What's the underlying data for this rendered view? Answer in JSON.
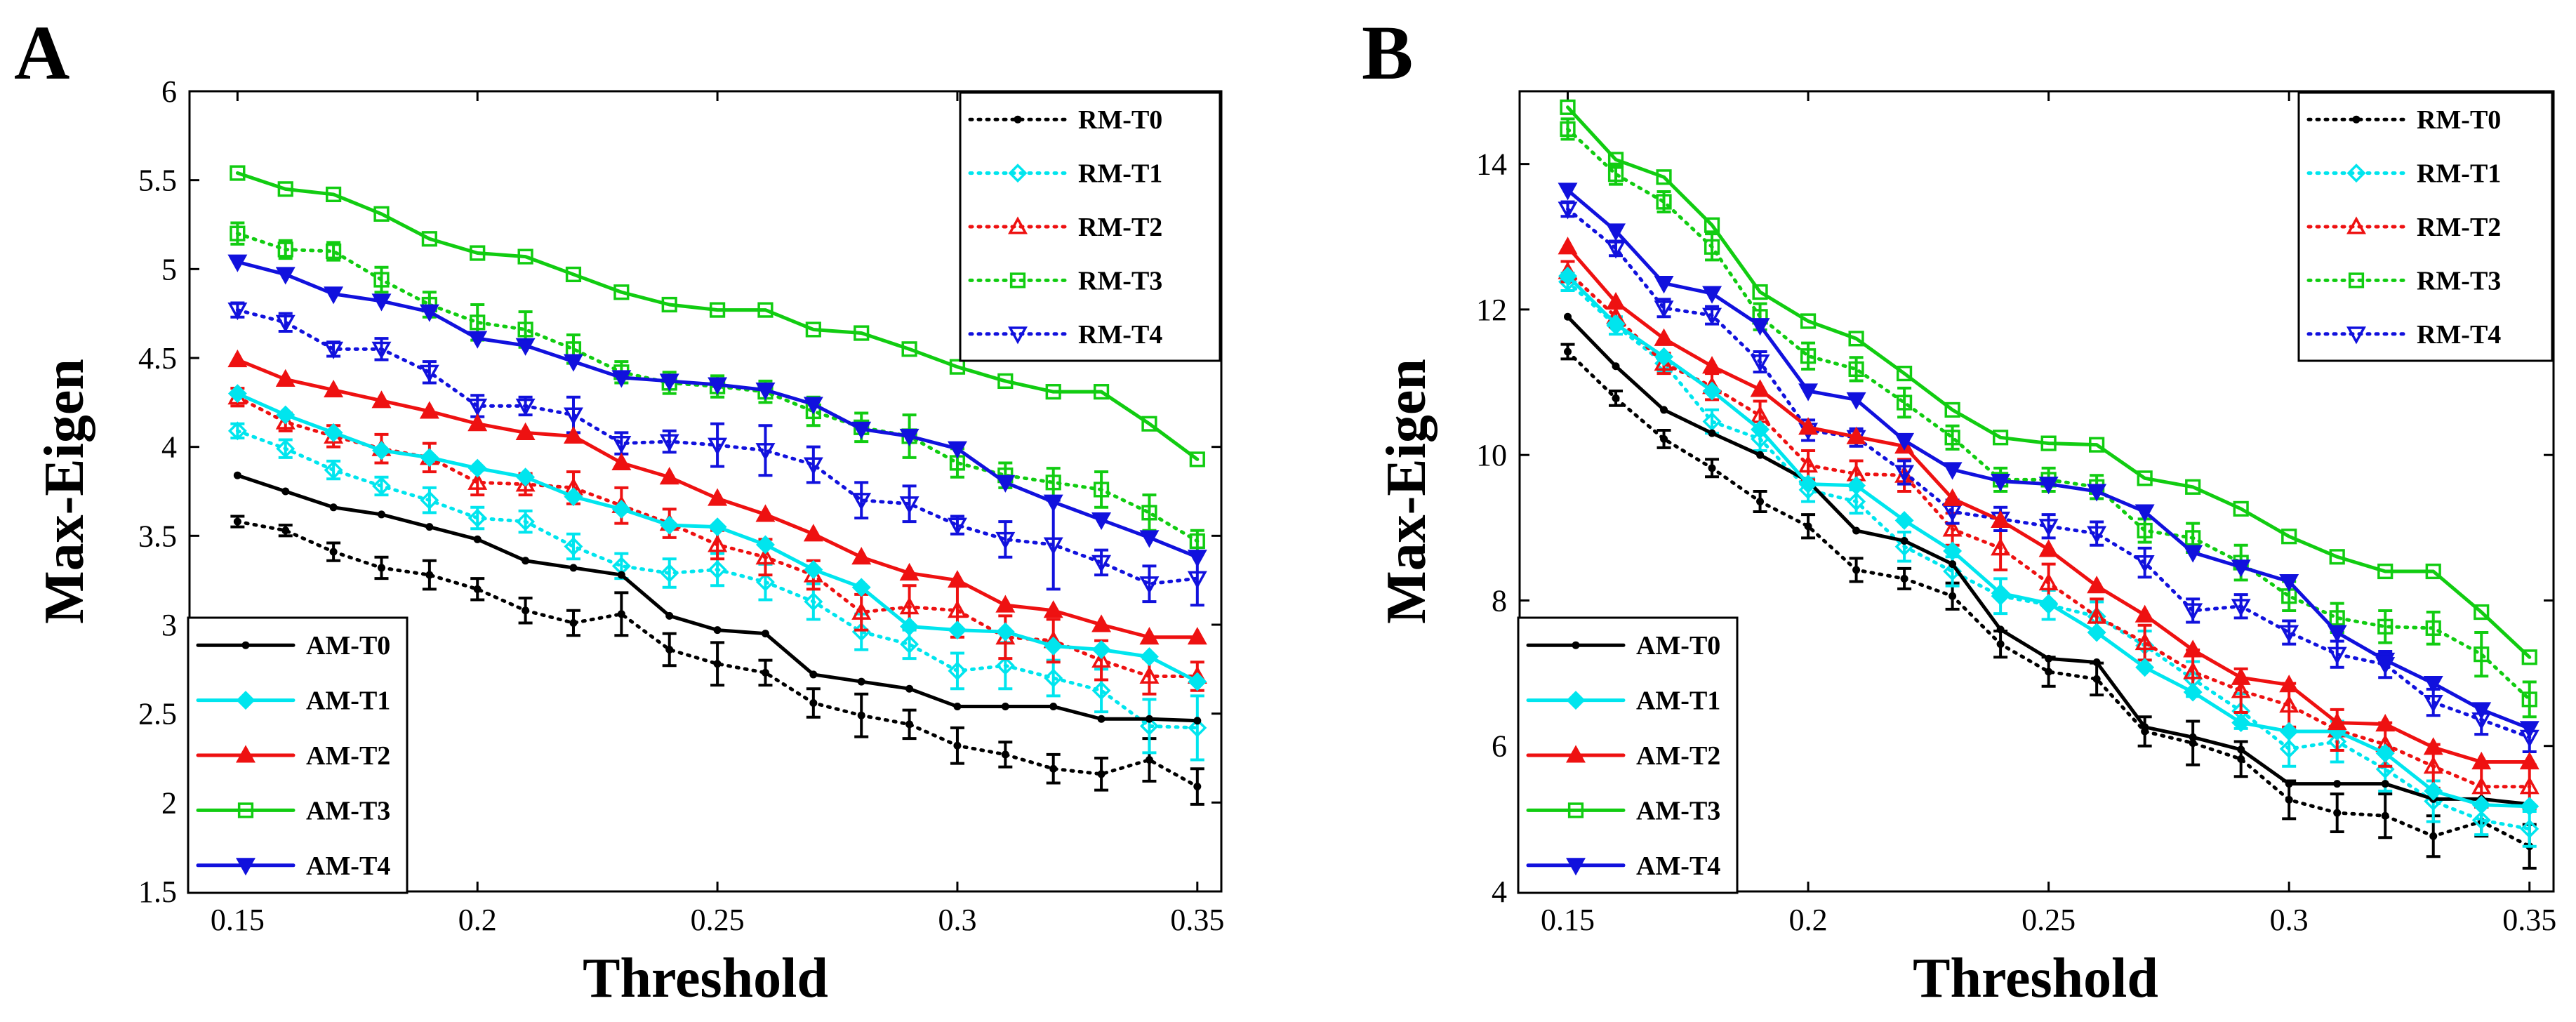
{
  "colors": {
    "T0": "#000000",
    "T1": "#00e5ee",
    "T2": "#ee1111",
    "T3": "#11cc11",
    "T4": "#1111dd"
  },
  "chart_data": [
    {
      "type": "line",
      "panel_label": "A",
      "xlabel": "Threshold",
      "ylabel": "Max-Eigen",
      "xlim": [
        0.14,
        0.355
      ],
      "ylim": [
        1.5,
        6
      ],
      "xticks": [
        0.15,
        0.2,
        0.25,
        0.3,
        0.35
      ],
      "xtick_labels": [
        "0.15",
        "0.2",
        "0.25",
        "0.3",
        "0.35"
      ],
      "yticks": [
        1.5,
        2,
        2.5,
        3,
        3.5,
        4,
        4.5,
        5,
        5.5,
        6
      ],
      "ytick_labels": [
        "1.5",
        "2",
        "2.5",
        "3",
        "3.5",
        "4",
        "4.5",
        "5",
        "5.5",
        "6"
      ],
      "legend_solid_position": "bottom-left",
      "legend_dotted_position": "top-right",
      "x": [
        0.15,
        0.16,
        0.17,
        0.18,
        0.19,
        0.2,
        0.21,
        0.22,
        0.23,
        0.24,
        0.25,
        0.26,
        0.27,
        0.28,
        0.29,
        0.3,
        0.31,
        0.32,
        0.33,
        0.34,
        0.35
      ],
      "series": [
        {
          "name": "AM-T0",
          "key": "T0",
          "style": "solid",
          "marker": "dot",
          "values": [
            3.84,
            3.75,
            3.66,
            3.62,
            3.55,
            3.48,
            3.36,
            3.32,
            3.28,
            3.05,
            2.97,
            2.95,
            2.72,
            2.68,
            2.64,
            2.54,
            2.54,
            2.54,
            2.47,
            2.47,
            2.46
          ]
        },
        {
          "name": "AM-T1",
          "key": "T1",
          "style": "solid",
          "marker": "diamond",
          "values": [
            4.3,
            4.18,
            4.08,
            3.98,
            3.94,
            3.88,
            3.83,
            3.72,
            3.65,
            3.56,
            3.55,
            3.45,
            3.31,
            3.21,
            2.99,
            2.97,
            2.96,
            2.88,
            2.86,
            2.82,
            2.68
          ]
        },
        {
          "name": "AM-T2",
          "key": "T2",
          "style": "solid",
          "marker": "triangle-up",
          "values": [
            4.49,
            4.38,
            4.32,
            4.26,
            4.2,
            4.13,
            4.08,
            4.06,
            3.91,
            3.83,
            3.71,
            3.62,
            3.51,
            3.38,
            3.29,
            3.25,
            3.11,
            3.08,
            3.0,
            2.93,
            2.93
          ]
        },
        {
          "name": "AM-T3",
          "key": "T3",
          "style": "solid",
          "marker": "square",
          "values": [
            5.54,
            5.45,
            5.42,
            5.31,
            5.17,
            5.09,
            5.07,
            4.97,
            4.87,
            4.8,
            4.77,
            4.77,
            4.66,
            4.64,
            4.55,
            4.45,
            4.37,
            4.31,
            4.31,
            4.13,
            3.93
          ]
        },
        {
          "name": "AM-T4",
          "key": "T4",
          "style": "solid",
          "marker": "triangle-down",
          "values": [
            5.04,
            4.97,
            4.86,
            4.82,
            4.76,
            4.61,
            4.57,
            4.48,
            4.39,
            4.37,
            4.35,
            4.32,
            4.24,
            4.1,
            4.06,
            3.99,
            3.8,
            3.69,
            3.59,
            3.49,
            3.38
          ]
        },
        {
          "name": "RM-T0",
          "key": "T0",
          "style": "dotted",
          "marker": "dot",
          "values": [
            3.58,
            3.53,
            3.41,
            3.32,
            3.28,
            3.2,
            3.08,
            3.01,
            3.06,
            2.86,
            2.78,
            2.73,
            2.56,
            2.49,
            2.44,
            2.32,
            2.27,
            2.19,
            2.16,
            2.24,
            2.09
          ],
          "errors": [
            0.03,
            0.03,
            0.05,
            0.06,
            0.08,
            0.06,
            0.07,
            0.07,
            0.12,
            0.09,
            0.12,
            0.07,
            0.08,
            0.12,
            0.08,
            0.1,
            0.07,
            0.08,
            0.09,
            0.12,
            0.1
          ]
        },
        {
          "name": "RM-T1",
          "key": "T1",
          "style": "dotted",
          "marker": "diamond",
          "values": [
            4.09,
            3.99,
            3.87,
            3.78,
            3.7,
            3.6,
            3.58,
            3.44,
            3.33,
            3.29,
            3.31,
            3.24,
            3.13,
            2.96,
            2.89,
            2.74,
            2.77,
            2.7,
            2.63,
            2.43,
            2.42
          ],
          "errors": [
            0.04,
            0.05,
            0.05,
            0.05,
            0.07,
            0.06,
            0.06,
            0.07,
            0.07,
            0.08,
            0.09,
            0.1,
            0.1,
            0.1,
            0.08,
            0.1,
            0.13,
            0.1,
            0.12,
            0.15,
            0.18
          ]
        },
        {
          "name": "RM-T2",
          "key": "T2",
          "style": "dotted",
          "marker": "triangle-up",
          "values": [
            4.28,
            4.14,
            4.06,
            3.99,
            3.94,
            3.8,
            3.79,
            3.77,
            3.67,
            3.57,
            3.45,
            3.38,
            3.28,
            3.07,
            3.1,
            3.08,
            2.93,
            2.91,
            2.8,
            2.71,
            2.71
          ],
          "errors": [
            0.05,
            0.05,
            0.06,
            0.08,
            0.08,
            0.07,
            0.06,
            0.09,
            0.1,
            0.08,
            0.08,
            0.1,
            0.08,
            0.1,
            0.12,
            0.15,
            0.12,
            0.12,
            0.11,
            0.1,
            0.08
          ]
        },
        {
          "name": "RM-T3",
          "key": "T3",
          "style": "dotted",
          "marker": "square",
          "values": [
            5.2,
            5.11,
            5.1,
            4.94,
            4.8,
            4.7,
            4.66,
            4.55,
            4.42,
            4.36,
            4.34,
            4.31,
            4.2,
            4.11,
            4.06,
            3.91,
            3.84,
            3.8,
            3.76,
            3.63,
            3.47
          ],
          "errors": [
            0.06,
            0.05,
            0.05,
            0.07,
            0.07,
            0.1,
            0.1,
            0.08,
            0.06,
            0.06,
            0.06,
            0.06,
            0.08,
            0.08,
            0.12,
            0.08,
            0.07,
            0.08,
            0.1,
            0.1,
            0.06
          ]
        },
        {
          "name": "RM-T4",
          "key": "T4",
          "style": "dotted",
          "marker": "triangle-down",
          "values": [
            4.77,
            4.7,
            4.55,
            4.55,
            4.42,
            4.23,
            4.23,
            4.18,
            4.02,
            4.03,
            4.01,
            3.98,
            3.9,
            3.7,
            3.68,
            3.56,
            3.48,
            3.45,
            3.35,
            3.23,
            3.26
          ],
          "errors": [
            0.04,
            0.05,
            0.04,
            0.06,
            0.06,
            0.06,
            0.05,
            0.1,
            0.06,
            0.06,
            0.12,
            0.14,
            0.1,
            0.1,
            0.1,
            0.05,
            0.1,
            0.25,
            0.07,
            0.1,
            0.15
          ]
        }
      ]
    },
    {
      "type": "line",
      "panel_label": "B",
      "xlabel": "Threshold",
      "ylabel": "Max-Eigen",
      "xlim": [
        0.14,
        0.355
      ],
      "ylim": [
        4,
        15
      ],
      "xticks": [
        0.15,
        0.2,
        0.25,
        0.3,
        0.35
      ],
      "xtick_labels": [
        "0.15",
        "0.2",
        "0.25",
        "0.3",
        "0.35"
      ],
      "yticks": [
        4,
        6,
        8,
        10,
        12,
        14
      ],
      "ytick_labels": [
        "4",
        "6",
        "8",
        "10",
        "12",
        "14"
      ],
      "legend_solid_position": "bottom-left",
      "legend_dotted_position": "top-right",
      "x": [
        0.15,
        0.16,
        0.17,
        0.18,
        0.19,
        0.2,
        0.21,
        0.22,
        0.23,
        0.24,
        0.25,
        0.26,
        0.27,
        0.28,
        0.29,
        0.3,
        0.31,
        0.32,
        0.33,
        0.34,
        0.35
      ],
      "series": [
        {
          "name": "AM-T0",
          "key": "T0",
          "style": "solid",
          "marker": "dot",
          "values": [
            11.9,
            11.22,
            10.62,
            10.3,
            10.0,
            9.64,
            8.96,
            8.82,
            8.5,
            7.6,
            7.2,
            7.15,
            6.26,
            6.12,
            5.95,
            5.48,
            5.48,
            5.48,
            5.27,
            5.27,
            5.2
          ]
        },
        {
          "name": "AM-T1",
          "key": "T1",
          "style": "solid",
          "marker": "diamond",
          "values": [
            12.46,
            11.8,
            11.35,
            10.88,
            10.35,
            9.6,
            9.58,
            9.1,
            8.68,
            8.1,
            7.96,
            7.56,
            7.08,
            6.74,
            6.32,
            6.2,
            6.2,
            5.9,
            5.38,
            5.19,
            5.17
          ]
        },
        {
          "name": "AM-T2",
          "key": "T2",
          "style": "solid",
          "marker": "triangle-up",
          "values": [
            12.86,
            12.1,
            11.6,
            11.22,
            10.9,
            10.38,
            10.25,
            10.12,
            9.4,
            9.1,
            8.7,
            8.2,
            7.8,
            7.32,
            6.94,
            6.84,
            6.32,
            6.3,
            5.98,
            5.78,
            5.78
          ]
        },
        {
          "name": "AM-T3",
          "key": "T3",
          "style": "solid",
          "marker": "square",
          "values": [
            14.78,
            14.06,
            13.82,
            13.16,
            12.24,
            11.84,
            11.6,
            11.12,
            10.62,
            10.24,
            10.16,
            10.14,
            9.68,
            9.56,
            9.26,
            8.88,
            8.6,
            8.4,
            8.4,
            7.84,
            7.22
          ]
        },
        {
          "name": "AM-T4",
          "key": "T4",
          "style": "solid",
          "marker": "triangle-down",
          "values": [
            13.64,
            13.08,
            12.36,
            12.22,
            11.78,
            10.88,
            10.76,
            10.2,
            9.8,
            9.64,
            9.6,
            9.5,
            9.22,
            8.66,
            8.46,
            8.26,
            7.56,
            7.18,
            6.86,
            6.5,
            6.24
          ]
        },
        {
          "name": "RM-T0",
          "key": "T0",
          "style": "dotted",
          "marker": "dot",
          "values": [
            11.42,
            10.78,
            10.22,
            9.82,
            9.36,
            9.02,
            8.42,
            8.3,
            8.06,
            7.4,
            7.02,
            6.92,
            6.2,
            6.04,
            5.82,
            5.26,
            5.08,
            5.04,
            4.76,
            4.96,
            4.62
          ],
          "errors": [
            0.1,
            0.1,
            0.12,
            0.12,
            0.14,
            0.16,
            0.16,
            0.14,
            0.18,
            0.18,
            0.2,
            0.22,
            0.2,
            0.3,
            0.24,
            0.26,
            0.26,
            0.3,
            0.28,
            0.2,
            0.3
          ]
        },
        {
          "name": "RM-T1",
          "key": "T1",
          "style": "dotted",
          "marker": "diamond",
          "values": [
            12.38,
            11.78,
            11.26,
            10.46,
            10.22,
            9.52,
            9.36,
            8.74,
            8.4,
            8.06,
            7.94,
            7.78,
            7.38,
            6.92,
            6.48,
            5.96,
            6.06,
            5.68,
            5.24,
            4.98,
            4.86
          ],
          "errors": [
            0.12,
            0.12,
            0.12,
            0.16,
            0.16,
            0.16,
            0.16,
            0.2,
            0.2,
            0.24,
            0.2,
            0.2,
            0.2,
            0.24,
            0.24,
            0.24,
            0.28,
            0.3,
            0.28,
            0.2,
            0.24
          ]
        },
        {
          "name": "RM-T2",
          "key": "T2",
          "style": "dotted",
          "marker": "triangle-up",
          "values": [
            12.52,
            11.9,
            11.26,
            10.94,
            10.54,
            9.86,
            9.74,
            9.72,
            8.98,
            8.72,
            8.24,
            7.78,
            7.42,
            7.02,
            6.76,
            6.56,
            6.22,
            6.02,
            5.72,
            5.44,
            5.44
          ],
          "errors": [
            0.14,
            0.14,
            0.14,
            0.18,
            0.2,
            0.2,
            0.18,
            0.22,
            0.22,
            0.3,
            0.26,
            0.24,
            0.24,
            0.3,
            0.3,
            0.3,
            0.28,
            0.3,
            0.3,
            0.28,
            0.3
          ]
        },
        {
          "name": "RM-T3",
          "key": "T3",
          "style": "dotted",
          "marker": "square",
          "values": [
            14.48,
            13.86,
            13.48,
            12.86,
            11.9,
            11.36,
            11.18,
            10.72,
            10.24,
            9.66,
            9.66,
            9.56,
            8.96,
            8.86,
            8.52,
            8.06,
            7.76,
            7.64,
            7.62,
            7.26,
            6.64
          ],
          "errors": [
            0.14,
            0.14,
            0.14,
            0.18,
            0.18,
            0.18,
            0.16,
            0.2,
            0.16,
            0.16,
            0.16,
            0.16,
            0.16,
            0.2,
            0.24,
            0.2,
            0.2,
            0.22,
            0.22,
            0.3,
            0.24
          ]
        },
        {
          "name": "RM-T4",
          "key": "T4",
          "style": "dotted",
          "marker": "triangle-down",
          "values": [
            13.38,
            12.84,
            12.02,
            11.92,
            11.28,
            10.34,
            10.24,
            9.76,
            9.22,
            9.12,
            9.02,
            8.92,
            8.52,
            7.86,
            7.92,
            7.56,
            7.26,
            7.12,
            6.6,
            6.36,
            6.12
          ],
          "errors": [
            0.1,
            0.1,
            0.12,
            0.12,
            0.14,
            0.14,
            0.12,
            0.16,
            0.16,
            0.16,
            0.16,
            0.16,
            0.2,
            0.16,
            0.16,
            0.16,
            0.18,
            0.18,
            0.18,
            0.2,
            0.2
          ]
        }
      ]
    }
  ]
}
